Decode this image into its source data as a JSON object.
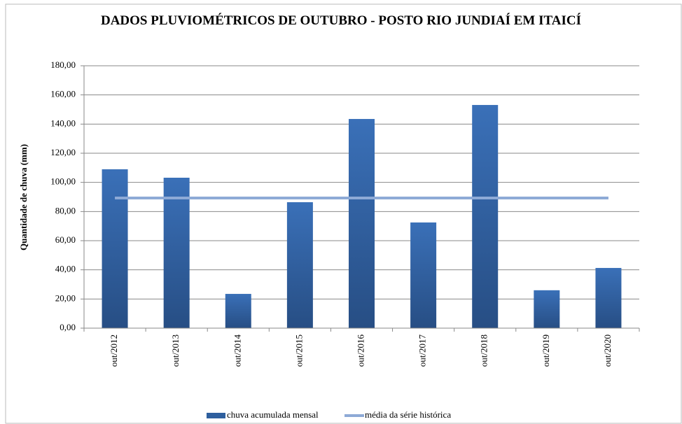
{
  "chart_data": {
    "type": "bar",
    "title": "DADOS PLUVIOMÉTRICOS DE OUTUBRO - POSTO RIO JUNDIAÍ EM ITAICÍ",
    "y_label": "Quantidade de chuva (mm)",
    "categories": [
      "out/2012",
      "out/2013",
      "out/2014",
      "out/2015",
      "out/2016",
      "out/2017",
      "out/2018",
      "out/2019",
      "out/2020"
    ],
    "series": [
      {
        "name": "chuva acumulada mensal",
        "color": "#2e5f9e",
        "type": "bar",
        "values": [
          109.0,
          103.2,
          23.5,
          86.4,
          143.5,
          72.5,
          153.1,
          26.0,
          41.3
        ]
      },
      {
        "name": "média da série histórica",
        "color": "#8eaad6",
        "type": "line",
        "values": [
          89.3,
          89.3,
          89.3,
          89.3,
          89.3,
          89.3,
          89.3,
          89.3,
          89.3
        ]
      }
    ],
    "ylim": [
      0,
      180
    ],
    "yticks": [
      {
        "value": 0,
        "label": "0,00"
      },
      {
        "value": 20,
        "label": "20,00"
      },
      {
        "value": 40,
        "label": "40,00"
      },
      {
        "value": 60,
        "label": "60,00"
      },
      {
        "value": 80,
        "label": "80,00"
      },
      {
        "value": 100,
        "label": "100,00"
      },
      {
        "value": 120,
        "label": "120,00"
      },
      {
        "value": 140,
        "label": "140,00"
      },
      {
        "value": 160,
        "label": "160,00"
      },
      {
        "value": 180,
        "label": "180,00"
      }
    ],
    "grid": true,
    "legend": "bottom"
  }
}
